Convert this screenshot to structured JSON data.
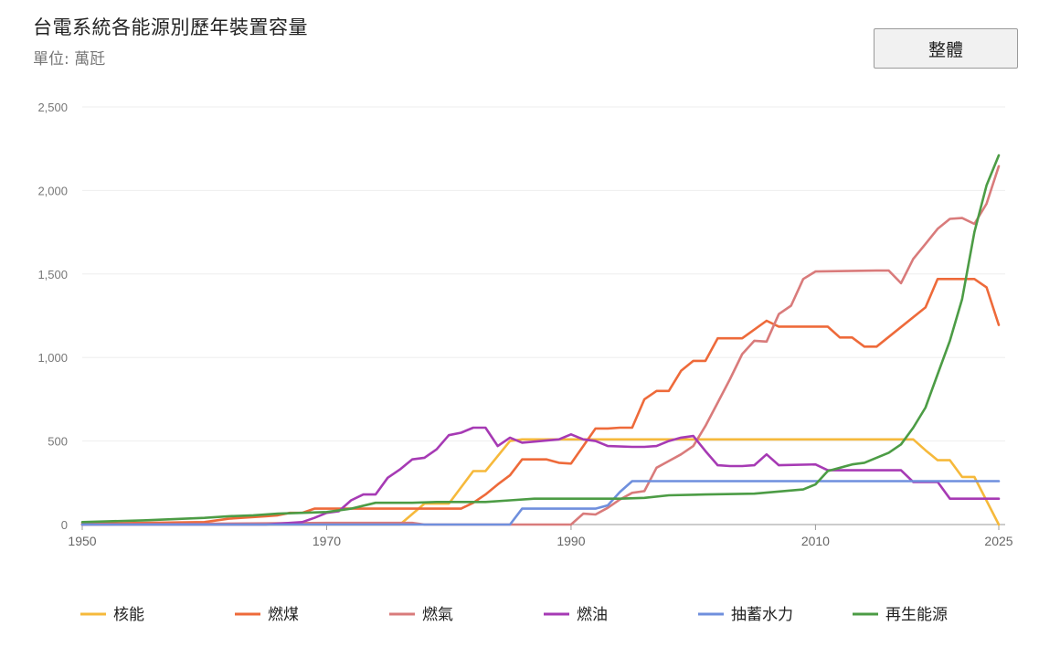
{
  "header": {
    "title": "台電系統各能源別歷年裝置容量",
    "subtitle": "單位: 萬瓩",
    "button_label": "整體"
  },
  "colors": {
    "核能": "#f6b93b",
    "燃煤": "#ee6a3a",
    "燃氣": "#d97b7b",
    "燃油": "#a63ab4",
    "抽蓄水力": "#6f8fdd",
    "再生能源": "#4c9c45",
    "axis": "#999999",
    "grid": "#eeeeee"
  },
  "chart_data": {
    "type": "line",
    "title": "台電系統各能源別歷年裝置容量",
    "ylabel": "單位: 萬瓩",
    "xlim": [
      1950,
      2025
    ],
    "ylim": [
      0,
      2500
    ],
    "grid": "horizontal",
    "legend_position": "bottom",
    "x_ticks": [
      1950,
      1970,
      1990,
      2010,
      2025
    ],
    "y_ticks": [
      0,
      500,
      1000,
      1500,
      2000,
      2500
    ],
    "y_tick_labels": [
      "0",
      "500",
      "1,000",
      "1,500",
      "2,000",
      "2,500"
    ],
    "series": [
      {
        "name": "核能",
        "points": [
          [
            1950,
            0
          ],
          [
            1976,
            0
          ],
          [
            1978,
            125
          ],
          [
            1980,
            125
          ],
          [
            1982,
            320
          ],
          [
            1983,
            320
          ],
          [
            1985,
            500
          ],
          [
            1986,
            510
          ],
          [
            2018,
            510
          ],
          [
            2019,
            445
          ],
          [
            2020,
            385
          ],
          [
            2021,
            385
          ],
          [
            2022,
            285
          ],
          [
            2023,
            285
          ],
          [
            2025,
            0
          ]
        ]
      },
      {
        "name": "燃煤",
        "points": [
          [
            1950,
            5
          ],
          [
            1955,
            10
          ],
          [
            1960,
            15
          ],
          [
            1962,
            35
          ],
          [
            1965,
            50
          ],
          [
            1966,
            55
          ],
          [
            1967,
            70
          ],
          [
            1968,
            70
          ],
          [
            1969,
            95
          ],
          [
            1978,
            95
          ],
          [
            1981,
            95
          ],
          [
            1982,
            130
          ],
          [
            1983,
            180
          ],
          [
            1984,
            240
          ],
          [
            1985,
            295
          ],
          [
            1986,
            390
          ],
          [
            1988,
            390
          ],
          [
            1989,
            370
          ],
          [
            1990,
            365
          ],
          [
            1991,
            470
          ],
          [
            1992,
            575
          ],
          [
            1993,
            575
          ],
          [
            1994,
            580
          ],
          [
            1995,
            580
          ],
          [
            1996,
            750
          ],
          [
            1997,
            800
          ],
          [
            1998,
            800
          ],
          [
            1999,
            920
          ],
          [
            2000,
            980
          ],
          [
            2001,
            980
          ],
          [
            2002,
            1115
          ],
          [
            2004,
            1115
          ],
          [
            2006,
            1220
          ],
          [
            2007,
            1185
          ],
          [
            2011,
            1185
          ],
          [
            2012,
            1120
          ],
          [
            2013,
            1120
          ],
          [
            2014,
            1065
          ],
          [
            2015,
            1065
          ],
          [
            2019,
            1300
          ],
          [
            2020,
            1470
          ],
          [
            2023,
            1470
          ],
          [
            2024,
            1420
          ],
          [
            2025,
            1195
          ]
        ]
      },
      {
        "name": "燃氣",
        "points": [
          [
            1950,
            0
          ],
          [
            1970,
            10
          ],
          [
            1977,
            10
          ],
          [
            1978,
            0
          ],
          [
            1990,
            0
          ],
          [
            1991,
            65
          ],
          [
            1992,
            60
          ],
          [
            1993,
            100
          ],
          [
            1994,
            150
          ],
          [
            1995,
            190
          ],
          [
            1996,
            200
          ],
          [
            1997,
            340
          ],
          [
            1998,
            380
          ],
          [
            1999,
            420
          ],
          [
            2000,
            470
          ],
          [
            2001,
            590
          ],
          [
            2002,
            730
          ],
          [
            2003,
            870
          ],
          [
            2004,
            1020
          ],
          [
            2005,
            1100
          ],
          [
            2006,
            1095
          ],
          [
            2007,
            1260
          ],
          [
            2008,
            1310
          ],
          [
            2009,
            1470
          ],
          [
            2010,
            1515
          ],
          [
            2015,
            1520
          ],
          [
            2016,
            1520
          ],
          [
            2017,
            1445
          ],
          [
            2018,
            1590
          ],
          [
            2019,
            1680
          ],
          [
            2020,
            1770
          ],
          [
            2021,
            1830
          ],
          [
            2022,
            1835
          ],
          [
            2023,
            1800
          ],
          [
            2024,
            1920
          ],
          [
            2025,
            2145
          ]
        ]
      },
      {
        "name": "燃油",
        "points": [
          [
            1950,
            0
          ],
          [
            1965,
            0
          ],
          [
            1966,
            5
          ],
          [
            1967,
            10
          ],
          [
            1968,
            15
          ],
          [
            1969,
            40
          ],
          [
            1970,
            70
          ],
          [
            1971,
            80
          ],
          [
            1972,
            145
          ],
          [
            1973,
            180
          ],
          [
            1974,
            180
          ],
          [
            1975,
            280
          ],
          [
            1976,
            330
          ],
          [
            1977,
            390
          ],
          [
            1978,
            400
          ],
          [
            1979,
            450
          ],
          [
            1980,
            535
          ],
          [
            1981,
            550
          ],
          [
            1982,
            580
          ],
          [
            1983,
            580
          ],
          [
            1984,
            470
          ],
          [
            1985,
            520
          ],
          [
            1986,
            490
          ],
          [
            1989,
            510
          ],
          [
            1990,
            540
          ],
          [
            1991,
            510
          ],
          [
            1992,
            500
          ],
          [
            1993,
            470
          ],
          [
            1995,
            465
          ],
          [
            1996,
            465
          ],
          [
            1997,
            470
          ],
          [
            1998,
            500
          ],
          [
            1999,
            520
          ],
          [
            2000,
            530
          ],
          [
            2001,
            440
          ],
          [
            2002,
            355
          ],
          [
            2003,
            350
          ],
          [
            2004,
            350
          ],
          [
            2005,
            355
          ],
          [
            2006,
            420
          ],
          [
            2007,
            355
          ],
          [
            2010,
            360
          ],
          [
            2011,
            325
          ],
          [
            2016,
            325
          ],
          [
            2017,
            325
          ],
          [
            2018,
            255
          ],
          [
            2020,
            255
          ],
          [
            2021,
            155
          ],
          [
            2025,
            155
          ]
        ]
      },
      {
        "name": "抽蓄水力",
        "points": [
          [
            1950,
            0
          ],
          [
            1985,
            0
          ],
          [
            1986,
            95
          ],
          [
            1991,
            95
          ],
          [
            1992,
            95
          ],
          [
            1993,
            115
          ],
          [
            1994,
            195
          ],
          [
            1995,
            260
          ],
          [
            2025,
            260
          ]
        ]
      },
      {
        "name": "再生能源",
        "points": [
          [
            1950,
            15
          ],
          [
            1955,
            25
          ],
          [
            1960,
            40
          ],
          [
            1962,
            50
          ],
          [
            1964,
            55
          ],
          [
            1966,
            65
          ],
          [
            1968,
            70
          ],
          [
            1970,
            75
          ],
          [
            1972,
            95
          ],
          [
            1974,
            130
          ],
          [
            1977,
            130
          ],
          [
            1979,
            135
          ],
          [
            1983,
            135
          ],
          [
            1985,
            145
          ],
          [
            1987,
            155
          ],
          [
            1994,
            155
          ],
          [
            1996,
            160
          ],
          [
            1998,
            175
          ],
          [
            2001,
            180
          ],
          [
            2005,
            185
          ],
          [
            2009,
            210
          ],
          [
            2010,
            240
          ],
          [
            2011,
            320
          ],
          [
            2013,
            360
          ],
          [
            2014,
            370
          ],
          [
            2016,
            430
          ],
          [
            2017,
            480
          ],
          [
            2018,
            580
          ],
          [
            2019,
            700
          ],
          [
            2020,
            900
          ],
          [
            2021,
            1100
          ],
          [
            2022,
            1350
          ],
          [
            2023,
            1750
          ],
          [
            2024,
            2030
          ],
          [
            2025,
            2210
          ]
        ]
      }
    ]
  }
}
